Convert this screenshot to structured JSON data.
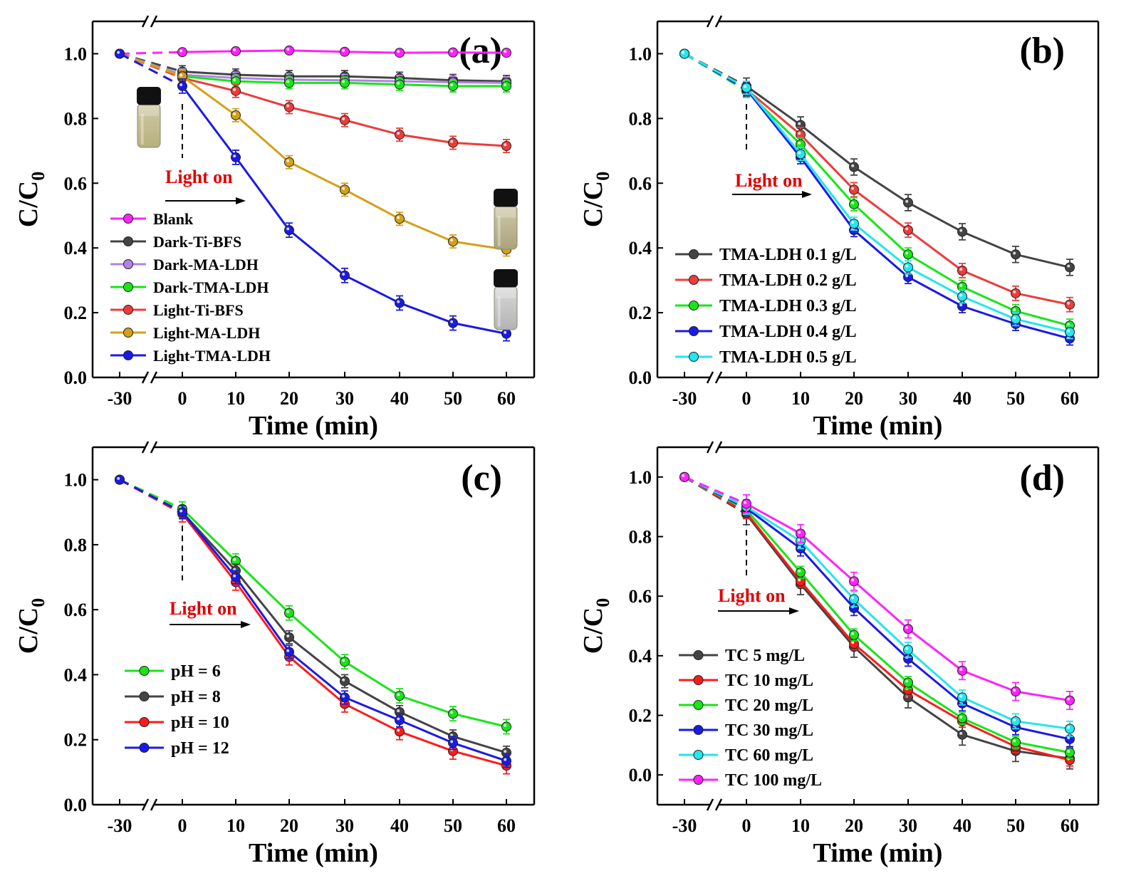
{
  "colors": {
    "magenta": "#ff22ff",
    "black": "#444444",
    "lavender": "#b283e6",
    "green": "#16e616",
    "red": "#ee3b3b",
    "gold": "#d4a017",
    "blue": "#1a1ae6",
    "cyan": "#22e6f0",
    "deepred": "#ff1a1a"
  },
  "chart_data": [
    {
      "panel": "(a)",
      "type": "line",
      "xlabel": "Time (min)",
      "ylabel_main": "C/C",
      "ylabel_sub": "0",
      "x": [
        -30,
        0,
        10,
        20,
        30,
        40,
        50,
        60
      ],
      "xticks": [
        "-30",
        "0",
        "10",
        "20",
        "30",
        "40",
        "50",
        "60"
      ],
      "yticks": [
        "0.0",
        "0.2",
        "0.4",
        "0.6",
        "0.8",
        "1.0"
      ],
      "ylim": [
        0,
        1.1
      ],
      "annotation": "Light on",
      "legend_position": "bottom-left",
      "series": [
        {
          "name": "Blank",
          "color": "#ff22ff",
          "values": [
            1.0,
            1.005,
            1.008,
            1.01,
            1.006,
            1.003,
            1.004,
            1.003
          ],
          "err": 0.005
        },
        {
          "name": "Dark-Ti-BFS",
          "color": "#444444",
          "values": [
            1.0,
            0.945,
            0.935,
            0.93,
            0.93,
            0.925,
            0.918,
            0.915
          ],
          "err": 0.018
        },
        {
          "name": "Dark-MA-LDH",
          "color": "#b283e6",
          "values": [
            1.0,
            0.935,
            0.925,
            0.92,
            0.918,
            0.915,
            0.912,
            0.91
          ],
          "err": 0.018
        },
        {
          "name": "Dark-TMA-LDH",
          "color": "#16e616",
          "values": [
            1.0,
            0.93,
            0.915,
            0.91,
            0.91,
            0.905,
            0.9,
            0.9
          ],
          "err": 0.018
        },
        {
          "name": "Light-Ti-BFS",
          "color": "#ee3b3b",
          "values": [
            1.0,
            0.925,
            0.885,
            0.835,
            0.795,
            0.75,
            0.725,
            0.715
          ],
          "err": 0.02
        },
        {
          "name": "Light-MA-LDH",
          "color": "#d4a017",
          "values": [
            1.0,
            0.93,
            0.81,
            0.665,
            0.58,
            0.49,
            0.42,
            0.395
          ],
          "err": 0.02
        },
        {
          "name": "Light-TMA-LDH",
          "color": "#1a1ae6",
          "values": [
            1.0,
            0.9,
            0.68,
            0.455,
            0.315,
            0.23,
            0.168,
            0.135
          ],
          "err": 0.022
        }
      ]
    },
    {
      "panel": "(b)",
      "type": "line",
      "xlabel": "Time (min)",
      "ylabel_main": "C/C",
      "ylabel_sub": "0",
      "x": [
        -30,
        0,
        10,
        20,
        30,
        40,
        50,
        60
      ],
      "xticks": [
        "-30",
        "0",
        "10",
        "20",
        "30",
        "40",
        "50",
        "60"
      ],
      "yticks": [
        "0.0",
        "0.2",
        "0.4",
        "0.6",
        "0.8",
        "1.0"
      ],
      "ylim": [
        0,
        1.1
      ],
      "annotation": "Light on",
      "legend_position": "bottom-left",
      "series": [
        {
          "name": "TMA-LDH 0.1 g/L",
          "color": "#444444",
          "values": [
            1.0,
            0.9,
            0.78,
            0.65,
            0.54,
            0.45,
            0.38,
            0.34
          ],
          "err": 0.025
        },
        {
          "name": "TMA-LDH 0.2 g/L",
          "color": "#ee3b3b",
          "values": [
            1.0,
            0.89,
            0.75,
            0.58,
            0.455,
            0.33,
            0.26,
            0.225
          ],
          "err": 0.022
        },
        {
          "name": "TMA-LDH 0.3 g/L",
          "color": "#16e616",
          "values": [
            1.0,
            0.885,
            0.72,
            0.535,
            0.38,
            0.28,
            0.205,
            0.16
          ],
          "err": 0.02
        },
        {
          "name": "TMA-LDH 0.4 g/L",
          "color": "#1a1ae6",
          "values": [
            1.0,
            0.89,
            0.68,
            0.455,
            0.31,
            0.22,
            0.165,
            0.12
          ],
          "err": 0.02
        },
        {
          "name": "TMA-LDH 0.5 g/L",
          "color": "#22e6f0",
          "values": [
            1.0,
            0.895,
            0.69,
            0.475,
            0.34,
            0.25,
            0.18,
            0.14
          ],
          "err": 0.02
        }
      ]
    },
    {
      "panel": "(c)",
      "type": "line",
      "xlabel": "Time (min)",
      "ylabel_main": "C/C",
      "ylabel_sub": "0",
      "x": [
        -30,
        0,
        10,
        20,
        30,
        40,
        50,
        60
      ],
      "xticks": [
        "-30",
        "0",
        "10",
        "20",
        "30",
        "40",
        "50",
        "60"
      ],
      "yticks": [
        "0.0",
        "0.2",
        "0.4",
        "0.6",
        "0.8",
        "1.0"
      ],
      "ylim": [
        0,
        1.1
      ],
      "annotation": "Light on",
      "legend_position": "bottom-left",
      "series": [
        {
          "name": "pH = 6",
          "color": "#16e616",
          "values": [
            1.0,
            0.91,
            0.75,
            0.59,
            0.44,
            0.335,
            0.28,
            0.24
          ],
          "err": 0.022
        },
        {
          "name": "pH = 8",
          "color": "#444444",
          "values": [
            1.0,
            0.9,
            0.72,
            0.515,
            0.38,
            0.285,
            0.21,
            0.16
          ],
          "err": 0.02
        },
        {
          "name": "pH = 10",
          "color": "#ff1a1a",
          "values": [
            1.0,
            0.895,
            0.685,
            0.455,
            0.31,
            0.225,
            0.165,
            0.12
          ],
          "err": 0.025
        },
        {
          "name": "pH = 12",
          "color": "#1a1ae6",
          "values": [
            1.0,
            0.9,
            0.7,
            0.47,
            0.33,
            0.26,
            0.19,
            0.135
          ],
          "err": 0.02
        }
      ]
    },
    {
      "panel": "(d)",
      "type": "line",
      "xlabel": "Time (min)",
      "ylabel_main": "C/C",
      "ylabel_sub": "0",
      "x": [
        -30,
        0,
        10,
        20,
        30,
        40,
        50,
        60
      ],
      "xticks": [
        "-30",
        "0",
        "10",
        "20",
        "30",
        "40",
        "50",
        "60"
      ],
      "yticks": [
        "0.0",
        "0.2",
        "0.4",
        "0.6",
        "0.8",
        "1.0"
      ],
      "ylim": [
        -0.1,
        1.1
      ],
      "annotation": "Light on",
      "legend_position": "bottom-left",
      "series": [
        {
          "name": "TC 5 mg/L",
          "color": "#444444",
          "values": [
            1.0,
            0.875,
            0.64,
            0.43,
            0.26,
            0.135,
            0.08,
            0.055
          ],
          "err": 0.035
        },
        {
          "name": "TC 10 mg/L",
          "color": "#ff1a1a",
          "values": [
            1.0,
            0.88,
            0.65,
            0.44,
            0.285,
            0.18,
            0.095,
            0.05
          ],
          "err": 0.02
        },
        {
          "name": "TC 20 mg/L",
          "color": "#16e616",
          "values": [
            1.0,
            0.89,
            0.68,
            0.47,
            0.31,
            0.19,
            0.11,
            0.075
          ],
          "err": 0.02
        },
        {
          "name": "TC 30 mg/L",
          "color": "#1a1ae6",
          "values": [
            1.0,
            0.895,
            0.76,
            0.56,
            0.39,
            0.24,
            0.16,
            0.12
          ],
          "err": 0.025
        },
        {
          "name": "TC 60 mg/L",
          "color": "#22e6f0",
          "values": [
            1.0,
            0.9,
            0.785,
            0.59,
            0.42,
            0.26,
            0.18,
            0.155
          ],
          "err": 0.025
        },
        {
          "name": "TC 100 mg/L",
          "color": "#ff22ff",
          "values": [
            1.0,
            0.91,
            0.81,
            0.65,
            0.49,
            0.35,
            0.28,
            0.25
          ],
          "err": 0.03
        }
      ]
    }
  ]
}
